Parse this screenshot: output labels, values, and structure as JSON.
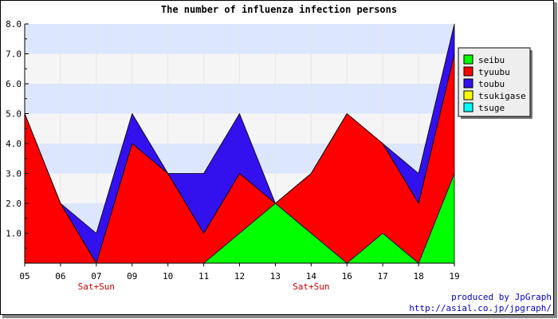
{
  "chart_data": {
    "type": "area",
    "stacked": true,
    "title": "The number of influenza infection persons",
    "xlabel": "",
    "ylabel": "",
    "categories": [
      "05",
      "06",
      "07",
      "09",
      "10",
      "11",
      "12",
      "13",
      "14",
      "16",
      "17",
      "18",
      "19"
    ],
    "weekend_labels": [
      "",
      "",
      "Sat+Sun",
      "",
      "",
      "",
      "",
      "",
      "Sat+Sun",
      "",
      "",
      "",
      ""
    ],
    "ylim": [
      0,
      8
    ],
    "yticks": [
      "1.0",
      "2.0",
      "3.0",
      "4.0",
      "5.0",
      "6.0",
      "7.0",
      "8.0"
    ],
    "series": [
      {
        "name": "seibu",
        "color": "#00ff00",
        "values": [
          0,
          0,
          0,
          0,
          0,
          0,
          1,
          2,
          1,
          0,
          1,
          0,
          3
        ]
      },
      {
        "name": "tyuubu",
        "color": "#ff0000",
        "values": [
          5,
          2,
          0,
          4,
          3,
          1,
          2,
          0,
          2,
          5,
          3,
          2,
          4
        ]
      },
      {
        "name": "toubu",
        "color": "#3311ee",
        "values": [
          0,
          0,
          1,
          1,
          0,
          2,
          2,
          0,
          0,
          0,
          0,
          1,
          1
        ]
      },
      {
        "name": "tsukigase",
        "color": "#ffff00",
        "values": [
          0,
          0,
          0,
          0,
          0,
          0,
          0,
          0,
          0,
          0,
          0,
          0,
          0
        ]
      },
      {
        "name": "tsuge",
        "color": "#00ffff",
        "values": [
          0,
          0,
          0,
          0,
          0,
          0,
          0,
          0,
          0,
          0,
          0,
          0,
          0
        ]
      }
    ],
    "grid": true,
    "legend_position": "right",
    "band_colors": [
      "#f5f5f5",
      "#dde6ff"
    ]
  },
  "credits": {
    "line1": "produced by JpGraph",
    "line2": "http://asial.co.jp/jpgraph/"
  },
  "colors": {
    "weekend_label": "#cc0000",
    "credit_text": "#0000cc"
  }
}
